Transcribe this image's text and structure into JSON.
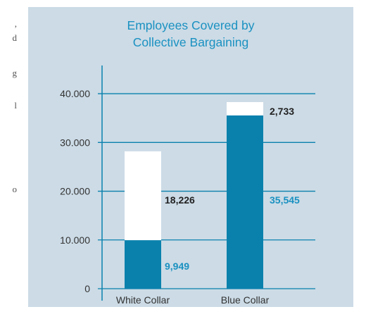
{
  "page_fragment": {
    "lines": [
      ",",
      "d",
      "g",
      "l",
      "o"
    ]
  },
  "chart_data": {
    "type": "bar",
    "stacked": true,
    "title_lines": [
      "Employees Covered by",
      "Collective Bargaining"
    ],
    "categories": [
      "White Collar",
      "Blue Collar"
    ],
    "series": [
      {
        "values": [
          9949,
          35545
        ],
        "labels": [
          "9,949",
          "35,545"
        ],
        "color": "#0a81ad",
        "label_color": "#1a91c1"
      },
      {
        "values": [
          18226,
          2733
        ],
        "labels": [
          "18,226",
          "2,733"
        ],
        "color": "#ffffff",
        "label_color": "#222222"
      }
    ],
    "yticks": [
      0,
      10000,
      20000,
      30000,
      40000
    ],
    "ytick_labels": [
      "0",
      "10.000",
      "20.000",
      "30.000",
      "40.000"
    ],
    "ylim": [
      0,
      45500
    ],
    "grid": true,
    "legend": "none",
    "colors": {
      "background": "#ccdbe6",
      "axis": "#0a81ad",
      "title": "#1a91c1"
    }
  }
}
